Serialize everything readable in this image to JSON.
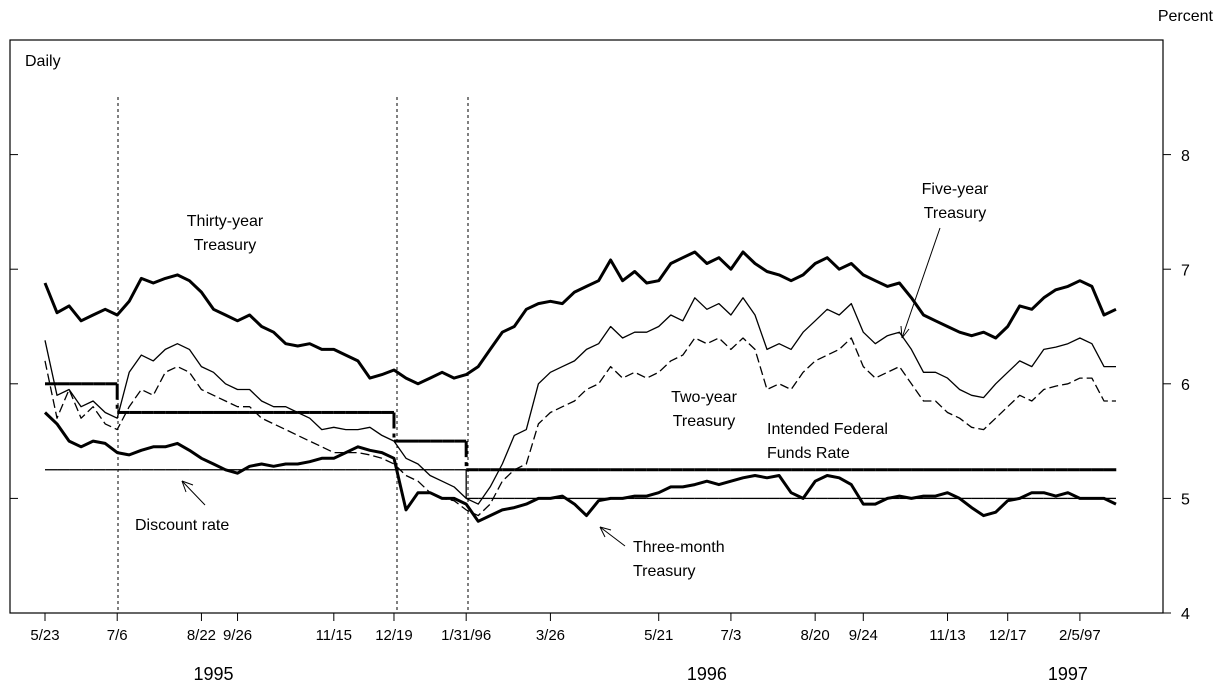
{
  "chart_data": {
    "type": "line",
    "y_unit_label": "Percent",
    "frequency_label": "Daily",
    "categories": [
      "5/23",
      null,
      null,
      null,
      null,
      null,
      "7/6",
      null,
      null,
      null,
      null,
      null,
      null,
      "8/22",
      null,
      null,
      "9/26",
      null,
      null,
      null,
      null,
      null,
      null,
      null,
      "11/15",
      null,
      null,
      null,
      null,
      "12/19",
      null,
      null,
      null,
      null,
      null,
      "1/31/96",
      null,
      null,
      null,
      null,
      null,
      null,
      "3/26",
      null,
      null,
      null,
      null,
      null,
      null,
      null,
      null,
      "5/21",
      null,
      null,
      null,
      null,
      null,
      "7/3",
      null,
      null,
      null,
      null,
      null,
      null,
      "8/20",
      null,
      null,
      null,
      "9/24",
      null,
      null,
      null,
      null,
      null,
      null,
      "11/13",
      null,
      null,
      null,
      null,
      "12/17",
      null,
      null,
      null,
      null,
      null,
      "2/5/97",
      null,
      null,
      null
    ],
    "year_labels": [
      {
        "label": "1995",
        "at": 14
      },
      {
        "label": "1996",
        "at": 55
      },
      {
        "label": "1997",
        "at": 85
      }
    ],
    "ylim": [
      4,
      9
    ],
    "yticks": [
      4,
      5,
      6,
      7,
      8
    ],
    "series": [
      {
        "name": "Thirty-year Treasury",
        "color": "#000000",
        "linestyle": "solid",
        "weight": "heavy",
        "values": [
          6.88,
          6.62,
          6.68,
          6.55,
          6.6,
          6.65,
          6.6,
          6.72,
          6.92,
          6.88,
          6.92,
          6.95,
          6.9,
          6.8,
          6.65,
          6.6,
          6.55,
          6.6,
          6.5,
          6.45,
          6.35,
          6.33,
          6.35,
          6.3,
          6.3,
          6.25,
          6.2,
          6.05,
          6.08,
          6.12,
          6.05,
          6.0,
          6.05,
          6.1,
          6.05,
          6.08,
          6.15,
          6.3,
          6.45,
          6.5,
          6.65,
          6.7,
          6.72,
          6.7,
          6.8,
          6.85,
          6.9,
          7.08,
          6.9,
          6.98,
          6.88,
          6.9,
          7.05,
          7.1,
          7.15,
          7.05,
          7.1,
          7.0,
          7.15,
          7.05,
          6.98,
          6.95,
          6.9,
          6.95,
          7.05,
          7.1,
          7.0,
          7.05,
          6.95,
          6.9,
          6.85,
          6.88,
          6.75,
          6.6,
          6.55,
          6.5,
          6.45,
          6.42,
          6.45,
          6.4,
          6.5,
          6.68,
          6.65,
          6.75,
          6.82,
          6.85,
          6.9,
          6.85,
          6.6,
          6.65
        ]
      },
      {
        "name": "Five-year Treasury",
        "color": "#000000",
        "linestyle": "dashed",
        "weight": "light",
        "values": [
          6.2,
          5.7,
          5.95,
          5.7,
          5.8,
          5.65,
          5.6,
          5.8,
          5.95,
          5.9,
          6.1,
          6.15,
          6.1,
          5.95,
          5.9,
          5.85,
          5.8,
          5.8,
          5.7,
          5.65,
          5.6,
          5.55,
          5.5,
          5.45,
          5.4,
          5.4,
          5.4,
          5.38,
          5.35,
          5.3,
          5.2,
          5.15,
          5.05,
          5.0,
          4.98,
          4.9,
          4.85,
          4.95,
          5.15,
          5.25,
          5.3,
          5.65,
          5.75,
          5.8,
          5.85,
          5.95,
          6.0,
          6.15,
          6.05,
          6.1,
          6.05,
          6.1,
          6.2,
          6.25,
          6.4,
          6.35,
          6.4,
          6.3,
          6.4,
          6.3,
          5.95,
          6.0,
          5.95,
          6.1,
          6.2,
          6.25,
          6.3,
          6.4,
          6.15,
          6.05,
          6.1,
          6.15,
          6.0,
          5.85,
          5.85,
          5.75,
          5.7,
          5.62,
          5.6,
          5.7,
          5.8,
          5.9,
          5.85,
          5.95,
          5.98,
          6.0,
          6.05,
          6.05,
          5.85,
          5.85
        ]
      },
      {
        "name": "Two-year Treasury",
        "color": "#000000",
        "linestyle": "solid",
        "weight": "light",
        "values": [
          6.38,
          5.9,
          5.95,
          5.8,
          5.85,
          5.75,
          5.7,
          6.1,
          6.25,
          6.2,
          6.3,
          6.35,
          6.3,
          6.15,
          6.1,
          6.0,
          5.95,
          5.95,
          5.85,
          5.8,
          5.8,
          5.75,
          5.7,
          5.6,
          5.62,
          5.6,
          5.6,
          5.62,
          5.55,
          5.5,
          5.35,
          5.3,
          5.2,
          5.15,
          5.1,
          5.0,
          4.95,
          5.1,
          5.3,
          5.55,
          5.6,
          6.0,
          6.1,
          6.15,
          6.2,
          6.3,
          6.35,
          6.5,
          6.4,
          6.45,
          6.45,
          6.5,
          6.6,
          6.55,
          6.75,
          6.65,
          6.7,
          6.6,
          6.75,
          6.6,
          6.3,
          6.35,
          6.3,
          6.45,
          6.55,
          6.65,
          6.6,
          6.7,
          6.45,
          6.35,
          6.42,
          6.45,
          6.3,
          6.1,
          6.1,
          6.05,
          5.95,
          5.9,
          5.88,
          6.0,
          6.1,
          6.2,
          6.15,
          6.3,
          6.32,
          6.35,
          6.4,
          6.35,
          6.15,
          6.15
        ]
      },
      {
        "name": "Intended Federal Funds Rate",
        "color": "#000000",
        "linestyle": "dashdot",
        "weight": "heavy",
        "step": true,
        "values": [
          6.0,
          6.0,
          6.0,
          6.0,
          6.0,
          6.0,
          5.75,
          5.75,
          5.75,
          5.75,
          5.75,
          5.75,
          5.75,
          5.75,
          5.75,
          5.75,
          5.75,
          5.75,
          5.75,
          5.75,
          5.75,
          5.75,
          5.75,
          5.75,
          5.75,
          5.75,
          5.75,
          5.75,
          5.75,
          5.5,
          5.5,
          5.5,
          5.5,
          5.5,
          5.5,
          5.25,
          5.25,
          5.25,
          5.25,
          5.25,
          5.25,
          5.25,
          5.25,
          5.25,
          5.25,
          5.25,
          5.25,
          5.25,
          5.25,
          5.25,
          5.25,
          5.25,
          5.25,
          5.25,
          5.25,
          5.25,
          5.25,
          5.25,
          5.25,
          5.25,
          5.25,
          5.25,
          5.25,
          5.25,
          5.25,
          5.25,
          5.25,
          5.25,
          5.25,
          5.25,
          5.25,
          5.25,
          5.25,
          5.25,
          5.25,
          5.25,
          5.25,
          5.25,
          5.25,
          5.25,
          5.25,
          5.25,
          5.25,
          5.25,
          5.25,
          5.25,
          5.25,
          5.25,
          5.25,
          5.25
        ]
      },
      {
        "name": "Discount rate",
        "color": "#000000",
        "linestyle": "solid",
        "weight": "light",
        "step": true,
        "values": [
          5.25,
          5.25,
          5.25,
          5.25,
          5.25,
          5.25,
          5.25,
          5.25,
          5.25,
          5.25,
          5.25,
          5.25,
          5.25,
          5.25,
          5.25,
          5.25,
          5.25,
          5.25,
          5.25,
          5.25,
          5.25,
          5.25,
          5.25,
          5.25,
          5.25,
          5.25,
          5.25,
          5.25,
          5.25,
          5.25,
          5.25,
          5.25,
          5.25,
          5.25,
          5.25,
          5.0,
          5.0,
          5.0,
          5.0,
          5.0,
          5.0,
          5.0,
          5.0,
          5.0,
          5.0,
          5.0,
          5.0,
          5.0,
          5.0,
          5.0,
          5.0,
          5.0,
          5.0,
          5.0,
          5.0,
          5.0,
          5.0,
          5.0,
          5.0,
          5.0,
          5.0,
          5.0,
          5.0,
          5.0,
          5.0,
          5.0,
          5.0,
          5.0,
          5.0,
          5.0,
          5.0,
          5.0,
          5.0,
          5.0,
          5.0,
          5.0,
          5.0,
          5.0,
          5.0,
          5.0,
          5.0,
          5.0,
          5.0,
          5.0,
          5.0,
          5.0,
          5.0,
          5.0,
          5.0,
          5.0
        ]
      },
      {
        "name": "Three-month Treasury",
        "color": "#000000",
        "linestyle": "solid",
        "weight": "heavy",
        "values": [
          5.75,
          5.65,
          5.5,
          5.45,
          5.5,
          5.48,
          5.4,
          5.38,
          5.42,
          5.45,
          5.45,
          5.48,
          5.42,
          5.35,
          5.3,
          5.25,
          5.22,
          5.28,
          5.3,
          5.28,
          5.3,
          5.3,
          5.32,
          5.35,
          5.35,
          5.4,
          5.45,
          5.42,
          5.4,
          5.35,
          4.9,
          5.05,
          5.05,
          5.0,
          5.0,
          4.95,
          4.8,
          4.85,
          4.9,
          4.92,
          4.95,
          5.0,
          5.0,
          5.02,
          4.95,
          4.85,
          4.98,
          5.0,
          5.0,
          5.02,
          5.02,
          5.05,
          5.1,
          5.1,
          5.12,
          5.15,
          5.12,
          5.15,
          5.18,
          5.2,
          5.18,
          5.2,
          5.05,
          5.0,
          5.15,
          5.2,
          5.18,
          5.12,
          4.95,
          4.95,
          5.0,
          5.02,
          5.0,
          5.02,
          5.02,
          5.05,
          5.0,
          4.92,
          4.85,
          4.88,
          4.98,
          5.0,
          5.05,
          5.05,
          5.02,
          5.05,
          5.0,
          5.0,
          5.0,
          4.95
        ]
      }
    ],
    "annotations": [
      {
        "lines": [
          "Thirty-year",
          "Treasury"
        ]
      },
      {
        "lines": [
          "Five-year",
          "Treasury"
        ]
      },
      {
        "lines": [
          "Two-year",
          "Treasury"
        ]
      },
      {
        "lines": [
          "Intended Federal",
          "Funds Rate"
        ]
      },
      {
        "lines": [
          "Discount rate"
        ]
      },
      {
        "lines": [
          "Three-month",
          "Treasury"
        ]
      }
    ]
  }
}
